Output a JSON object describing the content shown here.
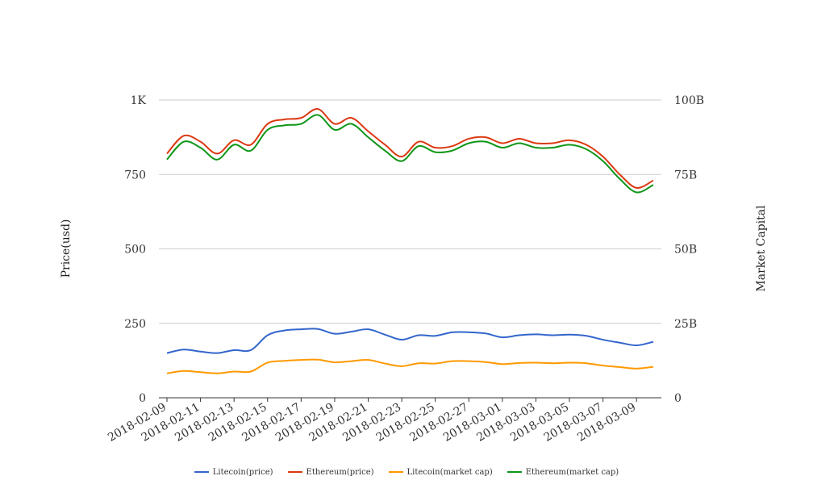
{
  "chart_data": {
    "type": "line",
    "x": [
      "2018-02-09",
      "2018-02-10",
      "2018-02-11",
      "2018-02-12",
      "2018-02-13",
      "2018-02-14",
      "2018-02-15",
      "2018-02-16",
      "2018-02-17",
      "2018-02-18",
      "2018-02-19",
      "2018-02-20",
      "2018-02-21",
      "2018-02-22",
      "2018-02-23",
      "2018-02-24",
      "2018-02-25",
      "2018-02-26",
      "2018-02-27",
      "2018-02-28",
      "2018-03-01",
      "2018-03-02",
      "2018-03-03",
      "2018-03-04",
      "2018-03-05",
      "2018-03-06",
      "2018-03-07",
      "2018-03-08",
      "2018-03-09",
      "2018-03-10"
    ],
    "x_tick_labels": [
      "2018-02-09",
      "2018-02-11",
      "2018-02-13",
      "2018-02-15",
      "2018-02-17",
      "2018-02-19",
      "2018-02-21",
      "2018-02-23",
      "2018-02-25",
      "2018-02-27",
      "2018-03-01",
      "2018-03-03",
      "2018-03-05",
      "2018-03-07",
      "2018-03-09"
    ],
    "y_left": {
      "label": "Price(usd)",
      "ylim": [
        0,
        1000
      ],
      "ticks": [
        0,
        250,
        500,
        750,
        1000
      ],
      "tick_labels": [
        "0",
        "250",
        "500",
        "750",
        "1K"
      ]
    },
    "y_right": {
      "label": "Market Capital",
      "ylim": [
        0,
        100000000000
      ],
      "ticks": [
        0,
        25000000000,
        50000000000,
        75000000000,
        100000000000
      ],
      "tick_labels": [
        "0",
        "25B",
        "50B",
        "75B",
        "100B"
      ]
    },
    "grid": true,
    "legend_position": "bottom-center",
    "series": [
      {
        "name": "Litecoin(price)",
        "color": "#3366cc",
        "axis": "left",
        "values": [
          150,
          162,
          155,
          150,
          160,
          160,
          210,
          226,
          230,
          231,
          215,
          222,
          230,
          212,
          195,
          210,
          208,
          220,
          220,
          216,
          203,
          210,
          213,
          210,
          212,
          208,
          195,
          185,
          176,
          188
        ]
      },
      {
        "name": "Ethereum(price)",
        "color": "#dc3912",
        "axis": "left",
        "values": [
          820,
          880,
          860,
          820,
          865,
          850,
          920,
          935,
          940,
          970,
          920,
          940,
          895,
          850,
          810,
          860,
          840,
          845,
          870,
          875,
          855,
          870,
          855,
          855,
          865,
          850,
          810,
          750,
          705,
          730
        ]
      },
      {
        "name": "Litecoin(market cap)",
        "color": "#ff9900",
        "axis": "right",
        "values": [
          8200000000,
          9000000000,
          8600000000,
          8200000000,
          8800000000,
          8800000000,
          11800000000,
          12400000000,
          12700000000,
          12800000000,
          11900000000,
          12300000000,
          12700000000,
          11500000000,
          10600000000,
          11600000000,
          11500000000,
          12300000000,
          12300000000,
          12000000000,
          11300000000,
          11700000000,
          11800000000,
          11600000000,
          11800000000,
          11600000000,
          10800000000,
          10300000000,
          9800000000,
          10400000000
        ]
      },
      {
        "name": "Ethereum(market cap)",
        "color": "#109618",
        "axis": "right",
        "values": [
          80000000000,
          86000000000,
          84000000000,
          80000000000,
          85000000000,
          83000000000,
          90000000000,
          91500000000,
          92000000000,
          95000000000,
          90000000000,
          92000000000,
          87500000000,
          83000000000,
          79500000000,
          84500000000,
          82500000000,
          83000000000,
          85500000000,
          86000000000,
          84000000000,
          85500000000,
          84000000000,
          84000000000,
          85000000000,
          83500000000,
          79500000000,
          73500000000,
          69000000000,
          71500000000
        ]
      }
    ]
  }
}
